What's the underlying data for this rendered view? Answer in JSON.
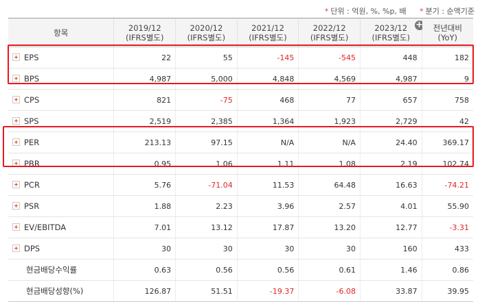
{
  "notes": {
    "unit": "단위 : 억원, %, %p, 배",
    "period": "분기 : 순액기준"
  },
  "header": {
    "item": "항목",
    "columns": [
      {
        "line1": "2019/12",
        "line2": "(IFRS별도)"
      },
      {
        "line1": "2020/12",
        "line2": "(IFRS별도)"
      },
      {
        "line1": "2021/12",
        "line2": "(IFRS별도)"
      },
      {
        "line1": "2022/12",
        "line2": "(IFRS별도)"
      },
      {
        "line1": "2023/12",
        "line2": "(IFRS별도)"
      },
      {
        "line1": "전년대비",
        "line2": "(YoY)"
      }
    ]
  },
  "rows": [
    {
      "label": "EPS",
      "expandable": true,
      "values": [
        "22",
        "55",
        "-145",
        "-545",
        "448",
        "182"
      ]
    },
    {
      "label": "BPS",
      "expandable": true,
      "values": [
        "4,987",
        "5,000",
        "4,848",
        "4,569",
        "4,987",
        "9"
      ]
    },
    {
      "label": "CPS",
      "expandable": true,
      "values": [
        "821",
        "-75",
        "468",
        "77",
        "657",
        "758"
      ]
    },
    {
      "label": "SPS",
      "expandable": true,
      "values": [
        "2,519",
        "2,385",
        "1,364",
        "1,923",
        "2,729",
        "42"
      ]
    },
    {
      "label": "PER",
      "expandable": true,
      "values": [
        "213.13",
        "97.15",
        "N/A",
        "N/A",
        "24.40",
        "369.17"
      ]
    },
    {
      "label": "PBR",
      "expandable": true,
      "values": [
        "0.95",
        "1.06",
        "1.11",
        "1.08",
        "2.19",
        "102.74"
      ]
    },
    {
      "label": "PCR",
      "expandable": true,
      "values": [
        "5.76",
        "-71.04",
        "11.53",
        "64.48",
        "16.63",
        "-74.21"
      ]
    },
    {
      "label": "PSR",
      "expandable": true,
      "values": [
        "1.88",
        "2.23",
        "3.96",
        "2.57",
        "4.01",
        "55.90"
      ]
    },
    {
      "label": "EV/EBITDA",
      "expandable": true,
      "values": [
        "7.01",
        "13.12",
        "17.87",
        "13.20",
        "12.77",
        "-3.31"
      ]
    },
    {
      "label": "DPS",
      "expandable": true,
      "values": [
        "30",
        "30",
        "30",
        "30",
        "160",
        "433"
      ]
    },
    {
      "label": "현금배당수익률",
      "expandable": false,
      "values": [
        "0.63",
        "0.56",
        "0.56",
        "0.61",
        "1.46",
        "0.86"
      ]
    },
    {
      "label": "현금배당성향(%)",
      "expandable": false,
      "values": [
        "126.87",
        "51.51",
        "-19.37",
        "-6.08",
        "33.87",
        "39.95"
      ]
    }
  ],
  "colors": {
    "negative": "#e02525",
    "highlight_box": "#e8171d",
    "header_bg": "#f4f4f4"
  }
}
